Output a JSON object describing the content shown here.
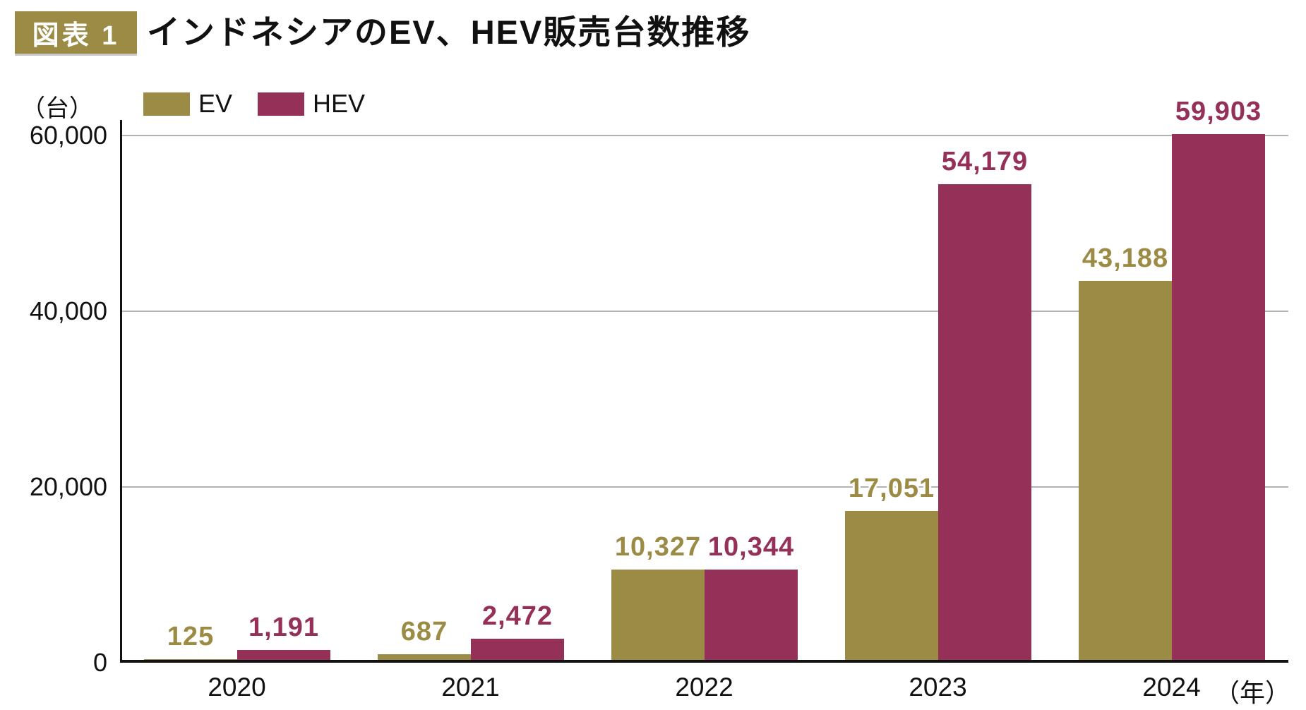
{
  "header": {
    "figure_badge": "図表 1",
    "title": "インドネシアのEV、HEV販売台数推移"
  },
  "colors": {
    "ev": "#9C8B45",
    "hev": "#953059",
    "badge_bg": "#9C8B45",
    "gridline": "#b3b3b3",
    "axis": "#111111"
  },
  "chart_data": {
    "type": "bar",
    "title": "インドネシアのEV、HEV販売台数推移",
    "categories": [
      "2020",
      "2021",
      "2022",
      "2023",
      "2024"
    ],
    "series": [
      {
        "name": "EV",
        "color": "#9C8B45",
        "values": [
          125,
          687,
          10327,
          17051,
          43188
        ]
      },
      {
        "name": "HEV",
        "color": "#953059",
        "values": [
          1191,
          2472,
          10344,
          54179,
          59903
        ]
      }
    ],
    "ylabel": "（台）",
    "xlabel_suffix": "（年）",
    "ylim": [
      0,
      60000
    ],
    "yticks": [
      0,
      20000,
      40000,
      60000
    ],
    "grid": true,
    "legend_position": "top-left",
    "value_labels_shown": true
  }
}
